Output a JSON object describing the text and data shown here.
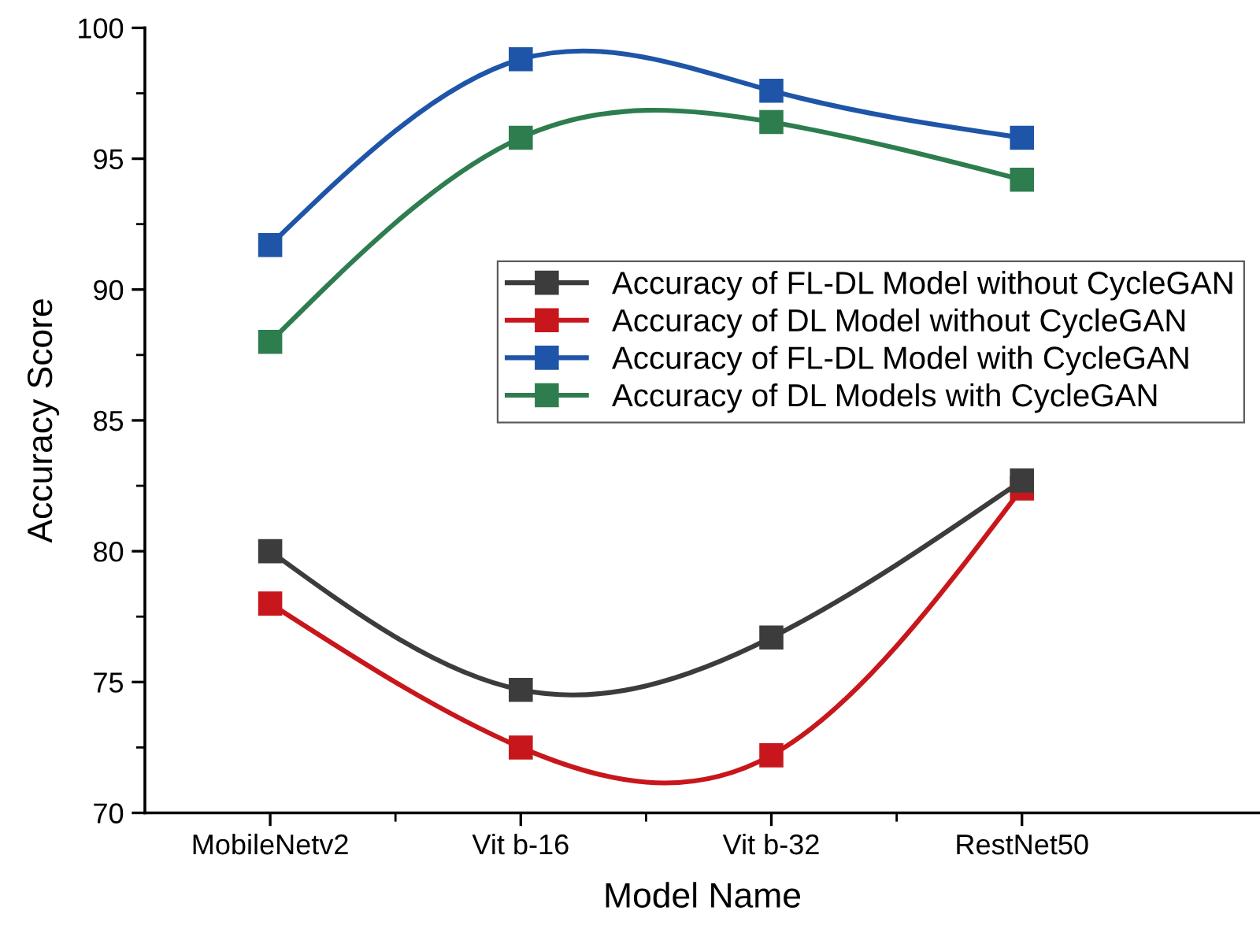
{
  "chart_data": {
    "type": "line",
    "xlabel": "Model Name",
    "ylabel": "Accuracy Score",
    "categories": [
      "MobileNetv2",
      "Vit b-16",
      "Vit b-32",
      "RestNet50"
    ],
    "series": [
      {
        "name": "Accuracy of FL-DL Model without CycleGAN",
        "color": "#3c3c3c",
        "values": [
          80.0,
          74.7,
          76.7,
          82.7
        ]
      },
      {
        "name": "Accuracy of DL Model without CycleGAN",
        "color": "#c8171c",
        "values": [
          78.0,
          72.5,
          72.2,
          82.4
        ]
      },
      {
        "name": "Accuracy of FL-DL Model with CycleGAN",
        "color": "#1f55a8",
        "values": [
          91.7,
          98.8,
          97.6,
          95.8
        ]
      },
      {
        "name": "Accuracy of DL Models with CycleGAN",
        "color": "#2e7d4f",
        "values": [
          88.0,
          95.8,
          96.4,
          94.2
        ]
      }
    ],
    "ylim": [
      70,
      100
    ],
    "yticks": [
      70,
      75,
      80,
      85,
      90,
      95,
      100
    ],
    "marker": "square",
    "line_style": "solid",
    "grid": false,
    "legend": "right"
  }
}
